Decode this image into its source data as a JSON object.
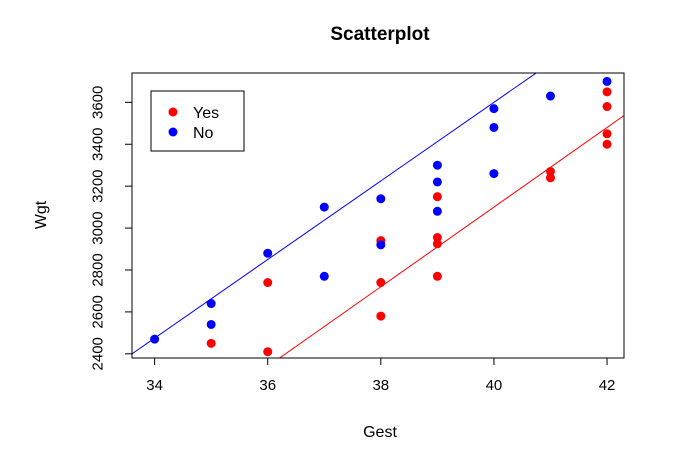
{
  "chart_data": {
    "type": "scatter",
    "title": "Scatterplot",
    "xlabel": "Gest",
    "ylabel": "Wgt",
    "xlim": [
      33.6,
      42.3
    ],
    "ylim": [
      2380,
      3740
    ],
    "xticks": [
      34,
      36,
      38,
      40,
      42
    ],
    "xtick_labels": [
      "34",
      "36",
      "38",
      "40",
      "42"
    ],
    "yticks": [
      2400,
      2600,
      2800,
      3000,
      3200,
      3400,
      3600
    ],
    "ytick_labels": [
      "2400",
      "2600",
      "2800",
      "3000",
      "3200",
      "3400",
      "3600"
    ],
    "legend": {
      "position": "top-left",
      "entries": [
        {
          "label": "Yes",
          "color": "#ff0000"
        },
        {
          "label": "No",
          "color": "#0000ff"
        }
      ]
    },
    "series": [
      {
        "name": "Yes",
        "color": "#ff0000",
        "points": [
          [
            35,
            2450
          ],
          [
            36,
            2410
          ],
          [
            36,
            2740
          ],
          [
            38,
            2580
          ],
          [
            38,
            2740
          ],
          [
            38,
            2940
          ],
          [
            39,
            2770
          ],
          [
            39,
            2925
          ],
          [
            39,
            2955
          ],
          [
            39,
            3150
          ],
          [
            41,
            3240
          ],
          [
            41,
            3270
          ],
          [
            42,
            3400
          ],
          [
            42,
            3450
          ],
          [
            42,
            3580
          ],
          [
            42,
            3650
          ]
        ],
        "fit_line": {
          "intercept": -4500,
          "slope": 190
        }
      },
      {
        "name": "No",
        "color": "#0000ff",
        "points": [
          [
            34,
            2470
          ],
          [
            35,
            2540
          ],
          [
            35,
            2640
          ],
          [
            36,
            2880
          ],
          [
            37,
            2770
          ],
          [
            37,
            3100
          ],
          [
            38,
            2920
          ],
          [
            38,
            3140
          ],
          [
            39,
            3080
          ],
          [
            39,
            3220
          ],
          [
            39,
            3300
          ],
          [
            40,
            3260
          ],
          [
            40,
            3480
          ],
          [
            40,
            3570
          ],
          [
            41,
            3630
          ],
          [
            42,
            3700
          ]
        ],
        "fit_line": {
          "intercept": -3900,
          "slope": 187.5
        }
      }
    ]
  }
}
